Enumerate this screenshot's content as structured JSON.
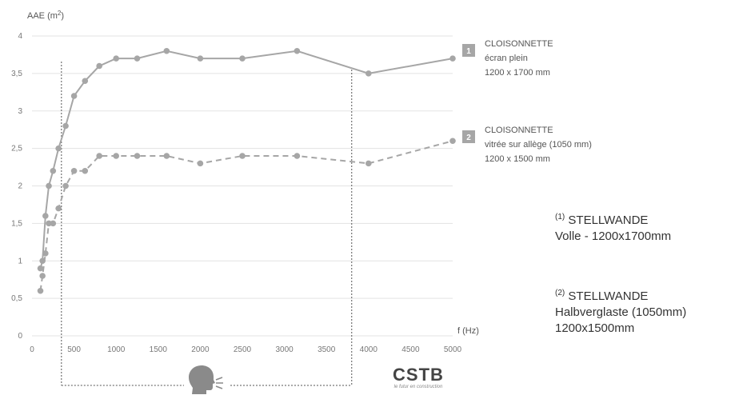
{
  "chart_data": {
    "type": "line",
    "ylabel": "AAE (m²)",
    "ylabel_main": "AAE (m",
    "ylabel_sup": "2",
    "ylabel_end": ")",
    "xlabel": "f (Hz)",
    "xlim": [
      0,
      5000
    ],
    "ylim": [
      0,
      4
    ],
    "x_ticks": [
      0,
      500,
      1000,
      1500,
      2000,
      2500,
      3000,
      3500,
      4000,
      4500,
      5000
    ],
    "x_tick_labels": [
      "0",
      "500",
      "1000",
      "1500",
      "2000",
      "2500",
      "3000",
      "3500",
      "4000",
      "4500",
      "5000"
    ],
    "y_ticks": [
      0,
      0.5,
      1,
      1.5,
      2,
      2.5,
      3,
      3.5,
      4
    ],
    "y_tick_labels": [
      "0",
      "0,5",
      "1",
      "1,5",
      "2",
      "2,5",
      "3",
      "3,5",
      "4"
    ],
    "grid": "horizontal",
    "series": [
      {
        "badge": "1",
        "style": "solid",
        "color": "#a6a6a6",
        "legend_lines": [
          "CLOISONNETTE",
          "écran plein",
          "1200 x 1700 mm"
        ],
        "x": [
          100,
          125,
          160,
          200,
          250,
          315,
          400,
          500,
          630,
          800,
          1000,
          1250,
          1600,
          2000,
          2500,
          3150,
          4000,
          5000
        ],
        "values": [
          0.9,
          1.0,
          1.6,
          2.0,
          2.2,
          2.5,
          2.8,
          3.2,
          3.4,
          3.6,
          3.7,
          3.7,
          3.8,
          3.7,
          3.7,
          3.8,
          3.5,
          3.7
        ]
      },
      {
        "badge": "2",
        "style": "dashed",
        "color": "#a6a6a6",
        "legend_lines": [
          "CLOISONNETTE",
          "vitrée sur allège (1050 mm)",
          "1200 x 1500 mm"
        ],
        "x": [
          100,
          125,
          160,
          200,
          250,
          315,
          400,
          500,
          630,
          800,
          1000,
          1250,
          1600,
          2000,
          2500,
          3150,
          4000,
          5000
        ],
        "values": [
          0.6,
          0.8,
          1.1,
          1.5,
          1.5,
          1.7,
          2.0,
          2.2,
          2.2,
          2.4,
          2.4,
          2.4,
          2.4,
          2.3,
          2.4,
          2.4,
          2.3,
          2.6
        ]
      }
    ],
    "annotation": {
      "type": "bracket",
      "x_range": [
        350,
        3800
      ],
      "icon": "speaking-head-icon"
    }
  },
  "notes": [
    {
      "sup": "(1)",
      "lines": [
        "STELLWANDE",
        "Volle - 1200x1700mm"
      ]
    },
    {
      "sup": "(2)",
      "lines": [
        "STELLWANDE",
        "Halbverglaste (1050mm)",
        "1200x1500mm"
      ]
    }
  ],
  "logo": {
    "main": "CSTB",
    "sub": "le futur en construction"
  }
}
